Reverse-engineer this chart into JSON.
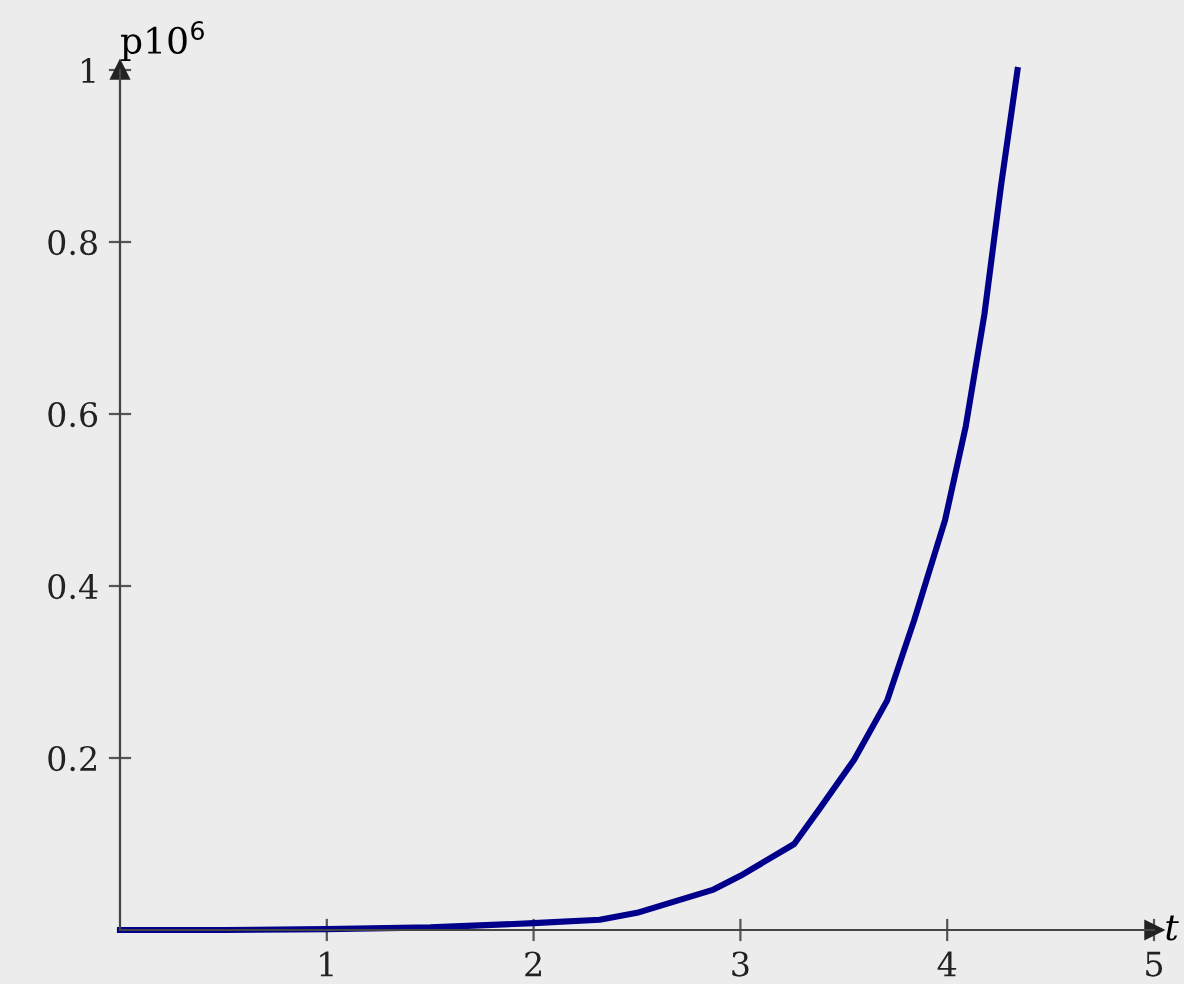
{
  "chart_data": {
    "type": "line",
    "xlabel": "t",
    "ylabel": "p10$^{6}$",
    "series": [
      {
        "color": "#00008b",
        "x": [
          0,
          0.5,
          1,
          1.5,
          2,
          2.32,
          2.5,
          2.87,
          3.0,
          3.26,
          3.38,
          3.55,
          3.71,
          3.84,
          3.99,
          4.09,
          4.18,
          4.26,
          4.34
        ],
        "values": [
          0,
          0,
          0.001,
          0.003,
          0.008,
          0.012,
          0.02,
          0.047,
          0.063,
          0.1,
          0.14,
          0.198,
          0.267,
          0.36,
          0.477,
          0.586,
          0.716,
          0.865,
          1.0
        ]
      }
    ],
    "xlim": [
      0,
      5
    ],
    "ylim": [
      0,
      1
    ],
    "xticks": [
      1,
      2,
      3,
      4,
      5
    ],
    "yticks": [
      0.2,
      0.4,
      0.6,
      0.8,
      1
    ],
    "grid": false,
    "legend": false,
    "marker": "none",
    "line_style": "solid"
  }
}
